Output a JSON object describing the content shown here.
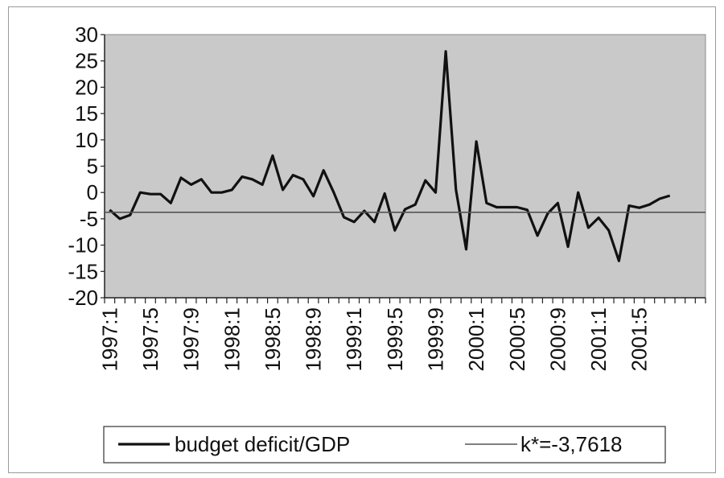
{
  "chart_data": {
    "type": "line",
    "title": "",
    "xlabel": "",
    "ylabel": "",
    "ylim": [
      -20,
      30
    ],
    "yticks": [
      30,
      25,
      20,
      15,
      10,
      5,
      0,
      -5,
      -10,
      -15,
      -20
    ],
    "xtick_labels": [
      "1997:1",
      "1997:5",
      "1997:9",
      "1998:1",
      "1998:5",
      "1998:9",
      "1999:1",
      "1999:5",
      "1999:9",
      "2000:1",
      "2000:5",
      "2000:9",
      "2001:1",
      "2001:5"
    ],
    "xtick_label_step": 4,
    "n_periods": 59,
    "plot_background": "#c9c9c9",
    "grid": false,
    "legend": {
      "position": "bottom"
    },
    "series": [
      {
        "name": "budget deficit/GDP",
        "color": "#111111",
        "style": "thick",
        "values": [
          -3.3,
          -5.0,
          -4.3,
          0.0,
          -0.3,
          -0.3,
          -2.0,
          2.8,
          1.5,
          2.5,
          0.0,
          0.0,
          0.5,
          3.0,
          2.5,
          1.5,
          7.0,
          0.5,
          3.3,
          2.5,
          -0.7,
          4.2,
          0.0,
          -4.7,
          -5.6,
          -3.5,
          -5.6,
          -0.2,
          -7.2,
          -3.2,
          -2.3,
          2.3,
          0.0,
          26.8,
          0.5,
          -10.8,
          9.7,
          -2.0,
          -2.8,
          -2.8,
          -2.8,
          -3.3,
          -8.2,
          -4.0,
          -2.0,
          -10.3,
          0.0,
          -6.7,
          -4.8,
          -7.2,
          -13.0,
          -2.5,
          -2.9,
          -2.3,
          -1.2,
          -0.6
        ]
      },
      {
        "name": "k*=-3,7618",
        "color": "#555555",
        "style": "thin",
        "values": [
          -3.7618
        ]
      }
    ]
  }
}
